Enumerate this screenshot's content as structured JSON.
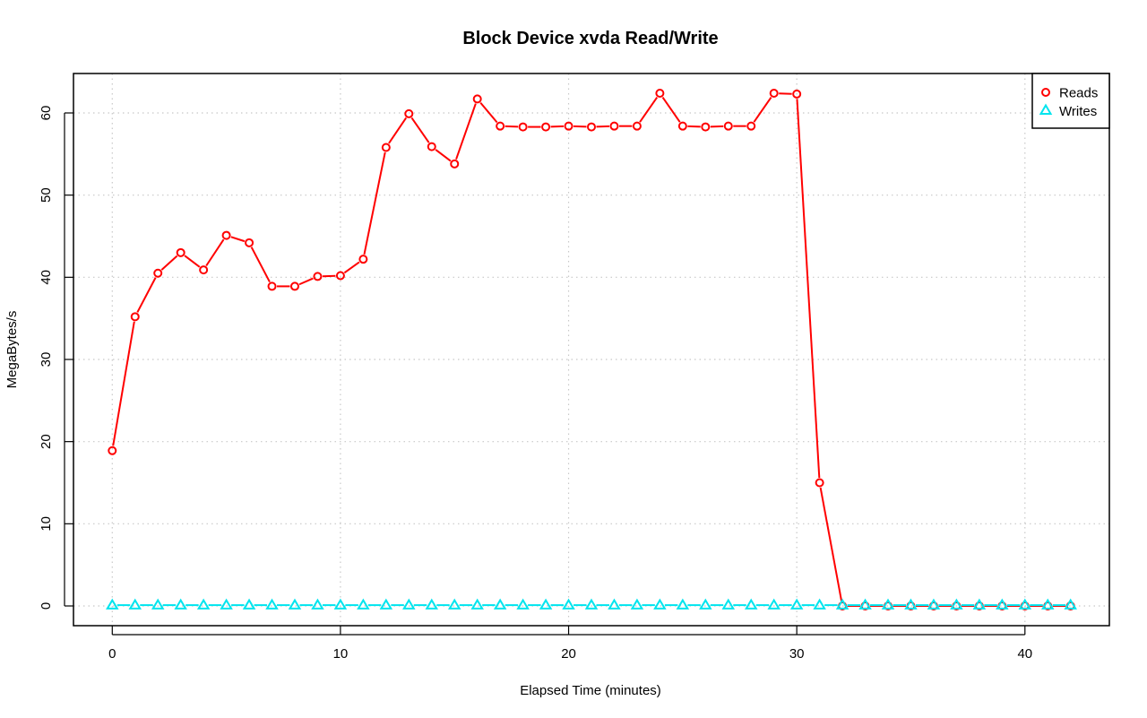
{
  "chart_data": {
    "type": "line",
    "title": "Block Device xvda Read/Write",
    "xlabel": "Elapsed Time (minutes)",
    "ylabel": "MegaBytes/s",
    "xlim": [
      -1.7,
      43.7
    ],
    "ylim": [
      -2.4,
      64.8
    ],
    "x_ticks": [
      0,
      10,
      20,
      30,
      40
    ],
    "y_ticks": [
      0,
      10,
      20,
      30,
      40,
      50,
      60
    ],
    "grid": true,
    "legend_position": "top-right",
    "x": [
      0,
      1,
      2,
      3,
      4,
      5,
      6,
      7,
      8,
      9,
      10,
      11,
      12,
      13,
      14,
      15,
      16,
      17,
      18,
      19,
      20,
      21,
      22,
      23,
      24,
      25,
      26,
      27,
      28,
      29,
      30,
      31,
      32,
      33,
      34,
      35,
      36,
      37,
      38,
      39,
      40,
      41,
      42
    ],
    "series": [
      {
        "name": "Reads",
        "color": "#ff0000",
        "marker": "circle",
        "values": [
          18.9,
          35.2,
          40.5,
          43.0,
          40.9,
          45.1,
          44.2,
          38.9,
          38.9,
          40.1,
          40.2,
          42.2,
          55.8,
          59.9,
          55.9,
          53.8,
          61.7,
          58.4,
          58.3,
          58.3,
          58.4,
          58.3,
          58.4,
          58.4,
          62.4,
          58.4,
          58.3,
          58.4,
          58.4,
          62.4,
          62.3,
          15.0,
          0.0,
          0.0,
          0.0,
          0.0,
          0.0,
          0.0,
          0.0,
          0.0,
          0.0,
          0.0,
          0.0
        ]
      },
      {
        "name": "Writes",
        "color": "#00e5ee",
        "marker": "triangle",
        "values": [
          0.1,
          0.1,
          0.1,
          0.1,
          0.1,
          0.1,
          0.1,
          0.1,
          0.1,
          0.1,
          0.1,
          0.1,
          0.1,
          0.1,
          0.1,
          0.1,
          0.1,
          0.1,
          0.1,
          0.1,
          0.1,
          0.1,
          0.1,
          0.1,
          0.1,
          0.1,
          0.1,
          0.1,
          0.1,
          0.1,
          0.1,
          0.1,
          0.1,
          0.1,
          0.1,
          0.1,
          0.1,
          0.1,
          0.1,
          0.1,
          0.1,
          0.1,
          0.1
        ]
      }
    ]
  }
}
